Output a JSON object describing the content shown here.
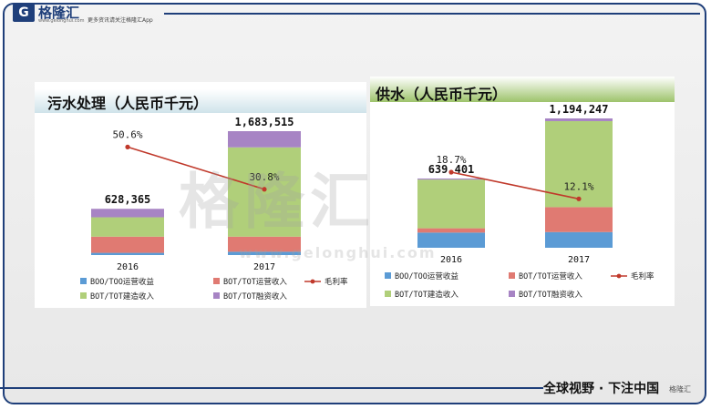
{
  "header": {
    "logo_mark": "G",
    "logo_name": "格隆汇",
    "logo_domain": "www.gelonghui.com",
    "tagline": "更多资讯请关注格隆汇App"
  },
  "footer": {
    "slogan": "全球视野 · 下注中国",
    "brand": "格隆汇"
  },
  "watermark": {
    "text": "格隆汇",
    "url": "www.gelonghui.com"
  },
  "colors": {
    "boo": "#5b9bd5",
    "bot_op": "#e07a72",
    "bot_build": "#b0cf7a",
    "bot_fin": "#a784c4",
    "margin_line": "#c0392b",
    "frame": "#1f3f7a",
    "title_band": "#9dc36b"
  },
  "chart_data": [
    {
      "type": "bar",
      "stacked": true,
      "title": "污水处理（人民币千元）",
      "categories": [
        "2016",
        "2017"
      ],
      "series": [
        {
          "name": "BOO/TOO运营收益",
          "values": [
            30000,
            45000
          ]
        },
        {
          "name": "BOT/TOT运营收入",
          "values": [
            220000,
            205000
          ]
        },
        {
          "name": "BOT/TOT建造收入",
          "values": [
            263365,
            1213515
          ]
        },
        {
          "name": "BOT/TOT融资收入",
          "values": [
            115000,
            220000
          ]
        }
      ],
      "totals": [
        "628,365",
        "1,683,515"
      ],
      "gross_margin": {
        "name": "毛利率",
        "values": [
          50.6,
          30.8
        ],
        "labels": [
          "50.6%",
          "30.8%"
        ]
      },
      "ylim": [
        0,
        1683515
      ]
    },
    {
      "type": "bar",
      "stacked": true,
      "title": "供水（人民币千元）",
      "categories": [
        "2016",
        "2017"
      ],
      "series": [
        {
          "name": "BOO/TOO运营收益",
          "values": [
            140000,
            145000
          ]
        },
        {
          "name": "BOT/TOT运营收入",
          "values": [
            40000,
            230000
          ]
        },
        {
          "name": "BOT/TOT建造收入",
          "values": [
            449401,
            794247
          ]
        },
        {
          "name": "BOT/TOT融资收入",
          "values": [
            10000,
            25000
          ]
        }
      ],
      "totals": [
        "639,401",
        "1,194,247"
      ],
      "gross_margin": {
        "name": "毛利率",
        "values": [
          18.7,
          12.1
        ],
        "labels": [
          "18.7%",
          "12.1%"
        ]
      },
      "ylim": [
        0,
        1194247
      ]
    }
  ]
}
